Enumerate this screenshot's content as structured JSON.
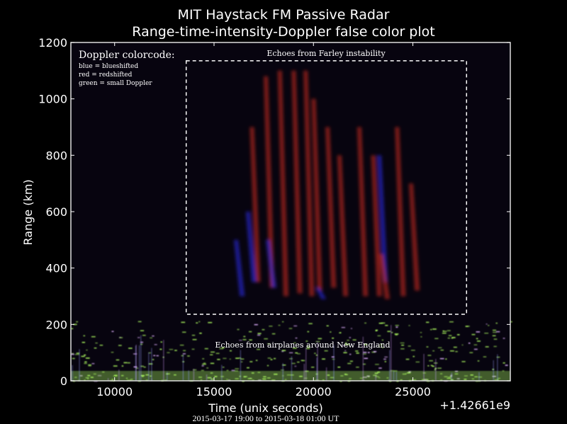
{
  "chart_data": {
    "type": "heatmap",
    "title": "MIT Haystack FM Passive Radar",
    "subtitle": "Range-time-intensity-Doppler false color plot",
    "xlabel": "Time (unix seconds)",
    "x_offset_label": "+1.42661e9",
    "x_sublabel": "2015-03-17 19:00 to 2015-03-18 01:00 UT",
    "ylabel": "Range (km)",
    "xlim": [
      7800,
      29900
    ],
    "ylim": [
      0,
      1200
    ],
    "x_ticks": [
      10000,
      15000,
      20000,
      25000
    ],
    "x_tick_labels": [
      "10000",
      "15000",
      "20000",
      "25000"
    ],
    "y_ticks": [
      0,
      200,
      400,
      600,
      800,
      1000,
      1200
    ],
    "y_tick_labels": [
      "0",
      "200",
      "400",
      "600",
      "800",
      "1000",
      "1200"
    ],
    "grid": false,
    "legend": {
      "title": "Doppler colorcode:",
      "placement": "top-left",
      "entries": [
        "blue = blueshifted",
        "red = redshifted",
        "green = small Doppler"
      ]
    },
    "colors": {
      "blueshifted": "#3030ff",
      "redshifted": "#e03020",
      "small_doppler": "#b0ff60",
      "background": "#000000"
    },
    "annotations": [
      {
        "text": "Echoes from Farley instability",
        "region": {
          "x": [
            13600,
            27700
          ],
          "y": [
            236,
            1135
          ]
        }
      },
      {
        "text": "Echoes from airplanes around New England",
        "region": {
          "x": [
            13600,
            27700
          ],
          "y": [
            120,
            160
          ]
        }
      }
    ]
  }
}
